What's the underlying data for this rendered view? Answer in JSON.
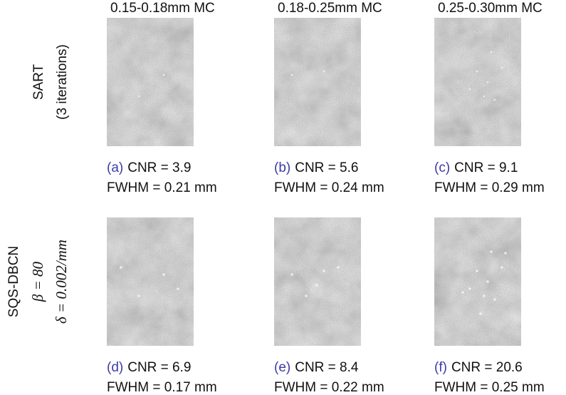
{
  "column_headers": [
    "0.15-0.18mm MC",
    "0.18-0.25mm MC",
    "0.25-0.30mm MC"
  ],
  "rows": [
    {
      "label_lines": [
        "SART",
        "(3 iterations)"
      ],
      "panels": [
        {
          "tag": "(a)",
          "cnr": "CNR = 3.9",
          "fwhm": "FWHM = 0.21 mm"
        },
        {
          "tag": "(b)",
          "cnr": "CNR = 5.6",
          "fwhm": "FWHM = 0.24 mm"
        },
        {
          "tag": "(c)",
          "cnr": "CNR = 9.1",
          "fwhm": "FWHM = 0.29 mm"
        }
      ]
    },
    {
      "label_lines": [
        "SQS-DBCN",
        "β = 80",
        "δ = 0.002/mm"
      ],
      "panels": [
        {
          "tag": "(d)",
          "cnr": "CNR = 6.9",
          "fwhm": "FWHM = 0.17 mm"
        },
        {
          "tag": "(e)",
          "cnr": "CNR = 8.4",
          "fwhm": "FWHM = 0.22 mm"
        },
        {
          "tag": "(f)",
          "cnr": "CNR = 20.6",
          "fwhm": "FWHM = 0.25 mm"
        }
      ]
    }
  ]
}
